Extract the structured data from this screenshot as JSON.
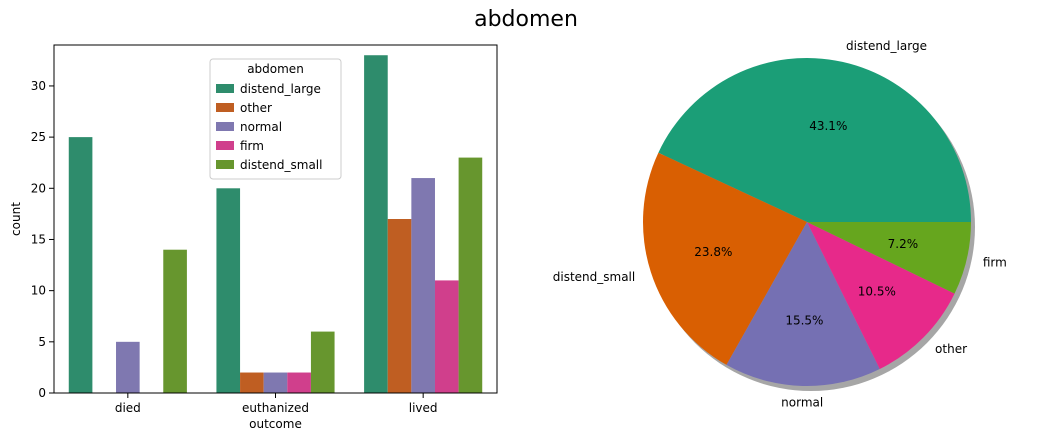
{
  "figure": {
    "title": "abdomen"
  },
  "chart_data": [
    {
      "type": "bar",
      "categories": [
        "died",
        "euthanized",
        "lived"
      ],
      "xlabel": "outcome",
      "ylabel": "count",
      "ylim": [
        0,
        34
      ],
      "yticks": [
        0,
        5,
        10,
        15,
        20,
        25,
        30
      ],
      "grid": false,
      "legend": {
        "title": "abdomen",
        "placement": "top-center"
      },
      "series": [
        {
          "name": "distend_large",
          "color": "#2e8c6c",
          "values": [
            25,
            20,
            33
          ]
        },
        {
          "name": "other",
          "color": "#bf5e22",
          "values": [
            0,
            2,
            17
          ]
        },
        {
          "name": "normal",
          "color": "#7f78b0",
          "values": [
            5,
            2,
            21
          ]
        },
        {
          "name": "firm",
          "color": "#d03f8c",
          "values": [
            0,
            2,
            11
          ]
        },
        {
          "name": "distend_small",
          "color": "#67962e",
          "values": [
            14,
            6,
            23
          ]
        }
      ]
    },
    {
      "type": "pie",
      "shadow": true,
      "start_angle_deg": 0,
      "direction": "counterclockwise",
      "slices": [
        {
          "label": "distend_large",
          "value": 43.1,
          "pct_label": "43.1%",
          "color": "#1b9e77"
        },
        {
          "label": "distend_small",
          "value": 23.8,
          "pct_label": "23.8%",
          "color": "#d95f02"
        },
        {
          "label": "normal",
          "value": 15.5,
          "pct_label": "15.5%",
          "color": "#7570b3"
        },
        {
          "label": "other",
          "value": 10.5,
          "pct_label": "10.5%",
          "color": "#e7298a"
        },
        {
          "label": "firm",
          "value": 7.2,
          "pct_label": "7.2%",
          "color": "#66a61e"
        }
      ]
    }
  ]
}
